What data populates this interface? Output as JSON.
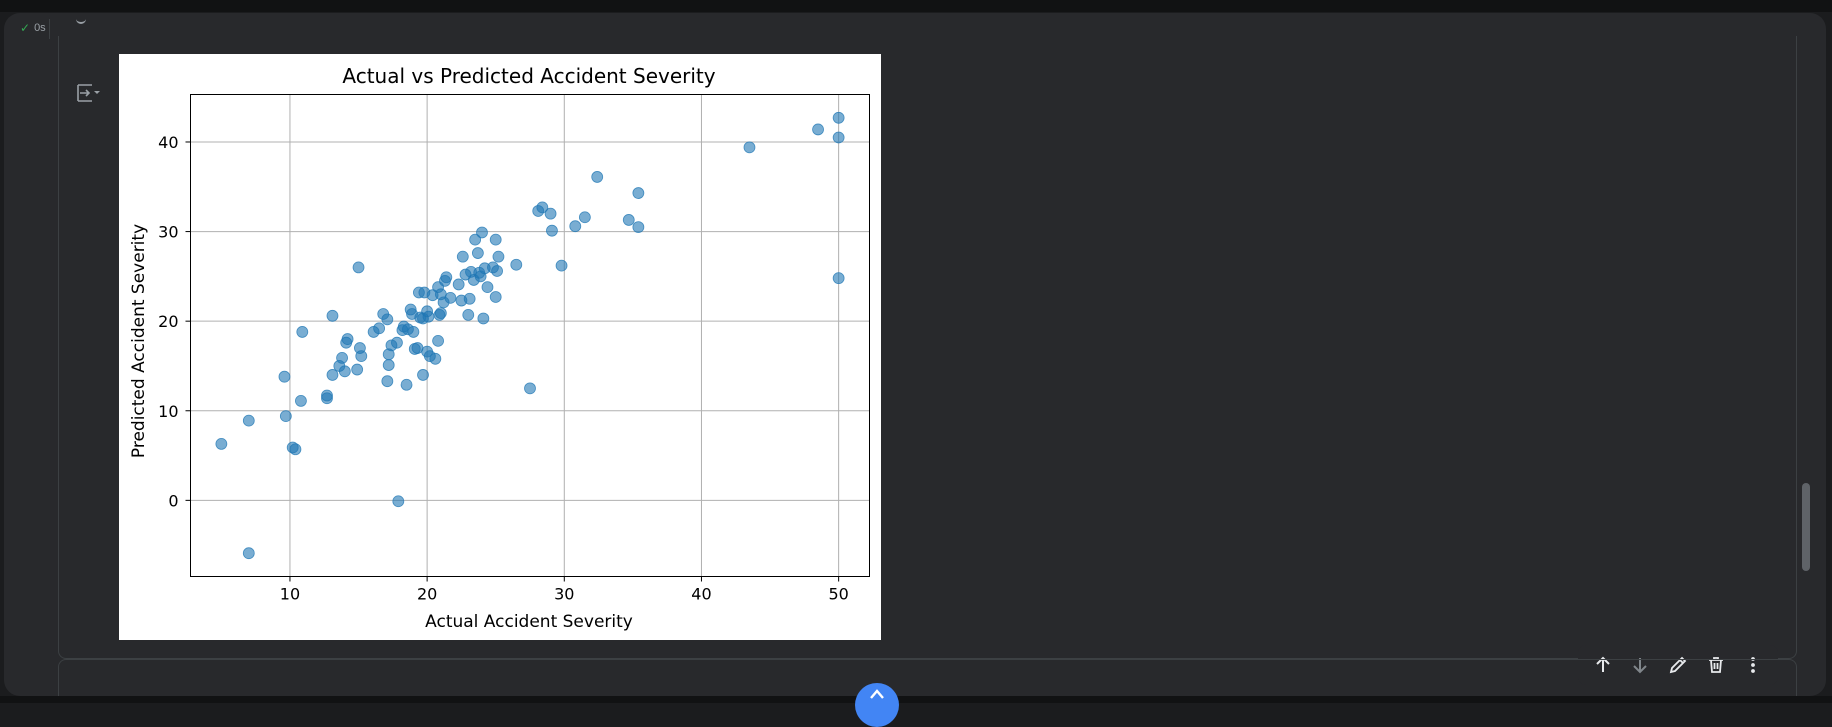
{
  "prev_cell": {
    "status_text": "0s"
  },
  "icons": {
    "check": "check-icon",
    "output_toggle": "output-toggle-icon",
    "move_up": "arrow-up-icon",
    "move_down": "arrow-down-icon",
    "edit": "pencil-icon",
    "delete": "trash-icon",
    "more": "more-vert-icon",
    "fab": "arrow-up-icon"
  },
  "colors": {
    "accent": "#4285f4",
    "marker": "#1f77b4",
    "success": "#34a853"
  },
  "chart_data": {
    "type": "scatter",
    "title": "Actual vs Predicted Accident Severity",
    "xlabel": "Actual Accident Severity",
    "ylabel": "Predicted Accident Severity",
    "xlim": [
      2.75,
      52.25
    ],
    "ylim": [
      -8.5,
      45.3
    ],
    "xticks": [
      10,
      20,
      30,
      40,
      50
    ],
    "yticks": [
      0,
      10,
      20,
      30,
      40
    ],
    "grid": true,
    "legend": "none",
    "marker_alpha": 0.6,
    "points": [
      [
        5.0,
        6.3
      ],
      [
        7.0,
        8.9
      ],
      [
        7.0,
        -5.9
      ],
      [
        9.6,
        13.8
      ],
      [
        9.7,
        9.4
      ],
      [
        10.2,
        5.9
      ],
      [
        10.4,
        5.7
      ],
      [
        10.8,
        11.1
      ],
      [
        10.9,
        18.8
      ],
      [
        12.7,
        11.4
      ],
      [
        12.7,
        11.7
      ],
      [
        13.1,
        14.0
      ],
      [
        13.1,
        20.6
      ],
      [
        13.6,
        15.0
      ],
      [
        13.8,
        15.9
      ],
      [
        14.0,
        14.4
      ],
      [
        14.1,
        17.6
      ],
      [
        14.2,
        18.0
      ],
      [
        14.9,
        14.6
      ],
      [
        15.0,
        26.0
      ],
      [
        15.1,
        17.0
      ],
      [
        15.2,
        16.1
      ],
      [
        16.1,
        18.8
      ],
      [
        16.5,
        19.2
      ],
      [
        16.8,
        20.8
      ],
      [
        17.1,
        20.2
      ],
      [
        17.1,
        13.3
      ],
      [
        17.2,
        15.1
      ],
      [
        17.2,
        16.3
      ],
      [
        17.4,
        17.3
      ],
      [
        17.8,
        17.6
      ],
      [
        17.9,
        -0.1
      ],
      [
        18.2,
        19.0
      ],
      [
        18.3,
        19.4
      ],
      [
        18.5,
        12.9
      ],
      [
        18.6,
        19.1
      ],
      [
        18.8,
        21.3
      ],
      [
        18.9,
        20.8
      ],
      [
        19.0,
        18.8
      ],
      [
        19.1,
        16.9
      ],
      [
        19.3,
        17.0
      ],
      [
        19.4,
        23.2
      ],
      [
        19.5,
        20.4
      ],
      [
        19.7,
        20.3
      ],
      [
        19.7,
        14.0
      ],
      [
        19.8,
        23.2
      ],
      [
        20.0,
        16.6
      ],
      [
        20.0,
        21.1
      ],
      [
        20.1,
        20.5
      ],
      [
        20.2,
        16.1
      ],
      [
        20.4,
        22.9
      ],
      [
        20.6,
        15.8
      ],
      [
        20.8,
        23.8
      ],
      [
        20.8,
        17.8
      ],
      [
        20.9,
        20.7
      ],
      [
        21.0,
        20.9
      ],
      [
        21.0,
        23.0
      ],
      [
        21.2,
        22.1
      ],
      [
        21.3,
        24.5
      ],
      [
        21.4,
        24.9
      ],
      [
        21.7,
        22.6
      ],
      [
        22.3,
        24.1
      ],
      [
        22.5,
        22.3
      ],
      [
        22.6,
        27.2
      ],
      [
        22.8,
        25.2
      ],
      [
        23.0,
        20.7
      ],
      [
        23.1,
        22.5
      ],
      [
        23.2,
        25.5
      ],
      [
        23.4,
        24.6
      ],
      [
        23.5,
        29.1
      ],
      [
        23.7,
        27.6
      ],
      [
        23.8,
        25.4
      ],
      [
        23.9,
        25.0
      ],
      [
        24.0,
        29.9
      ],
      [
        24.1,
        20.3
      ],
      [
        24.2,
        25.9
      ],
      [
        24.4,
        23.8
      ],
      [
        24.8,
        26.0
      ],
      [
        25.0,
        29.1
      ],
      [
        25.0,
        22.7
      ],
      [
        25.1,
        25.6
      ],
      [
        25.2,
        27.2
      ],
      [
        26.5,
        26.3
      ],
      [
        27.5,
        12.5
      ],
      [
        28.1,
        32.3
      ],
      [
        28.4,
        32.7
      ],
      [
        29.0,
        32.0
      ],
      [
        29.1,
        30.1
      ],
      [
        29.8,
        26.2
      ],
      [
        30.8,
        30.6
      ],
      [
        31.5,
        31.6
      ],
      [
        32.4,
        36.1
      ],
      [
        34.7,
        31.3
      ],
      [
        35.4,
        34.3
      ],
      [
        35.4,
        30.5
      ],
      [
        43.5,
        39.4
      ],
      [
        48.5,
        41.4
      ],
      [
        50.0,
        42.7
      ],
      [
        50.0,
        40.5
      ],
      [
        50.0,
        24.8
      ]
    ]
  }
}
